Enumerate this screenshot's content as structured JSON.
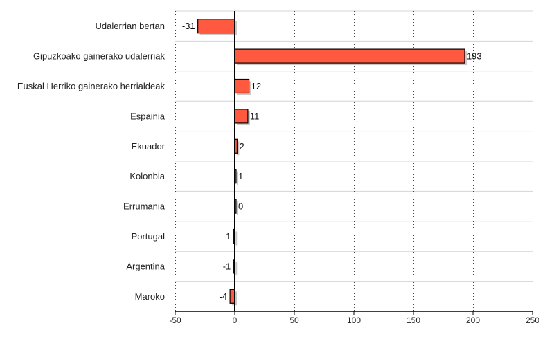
{
  "chart_data": {
    "type": "bar",
    "orientation": "horizontal",
    "categories": [
      "Udalerrian bertan",
      "Gipuzkoako gainerako udalerriak",
      "Euskal Herriko gainerako herrialdeak",
      "Espainia",
      "Ekuador",
      "Kolonbia",
      "Errumania",
      "Portugal",
      "Argentina",
      "Maroko"
    ],
    "values": [
      -31,
      193,
      12,
      11,
      2,
      1,
      0,
      -1,
      -1,
      -4
    ],
    "value_labels": [
      "-31",
      "193",
      "12",
      "11",
      "2",
      "1",
      "0",
      "-1",
      "-1",
      "-4"
    ],
    "xlim": [
      -50,
      250
    ],
    "xticks": [
      -50,
      0,
      50,
      100,
      150,
      200,
      250
    ],
    "xtick_labels": [
      "-50",
      "0",
      "50",
      "100",
      "150",
      "200",
      "250"
    ],
    "title": "",
    "xlabel": "",
    "ylabel": "",
    "grid": "vertical dotted, horizontal row separators",
    "bar_color": "#ff5a3f",
    "bar_outline_color": "#000000",
    "shadow_color": "#c9c9c9",
    "grid_color": "#444444",
    "row_separator_color": "#d4d4d4"
  }
}
